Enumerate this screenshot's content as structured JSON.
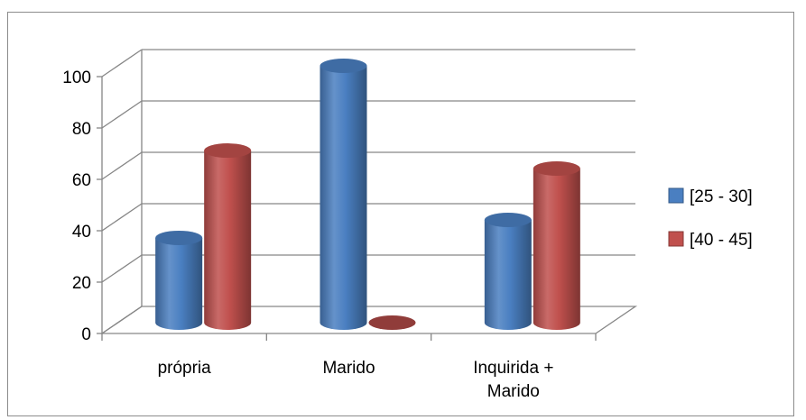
{
  "chart_data": {
    "type": "bar",
    "categories": [
      [
        "própria"
      ],
      [
        "Marido"
      ],
      [
        "Inquirida +",
        "Marido"
      ]
    ],
    "series": [
      {
        "name": "[25 - 30]",
        "values": [
          33,
          100,
          40
        ],
        "color": "#4a7fc1"
      },
      {
        "name": "[40 - 45]",
        "values": [
          67,
          0,
          60
        ],
        "color": "#c0504d"
      }
    ],
    "ylim": [
      0,
      100
    ],
    "yticks": [
      0,
      20,
      40,
      60,
      80,
      100
    ],
    "grid": true,
    "legend_position": "right",
    "style": "3d-cylinder"
  }
}
